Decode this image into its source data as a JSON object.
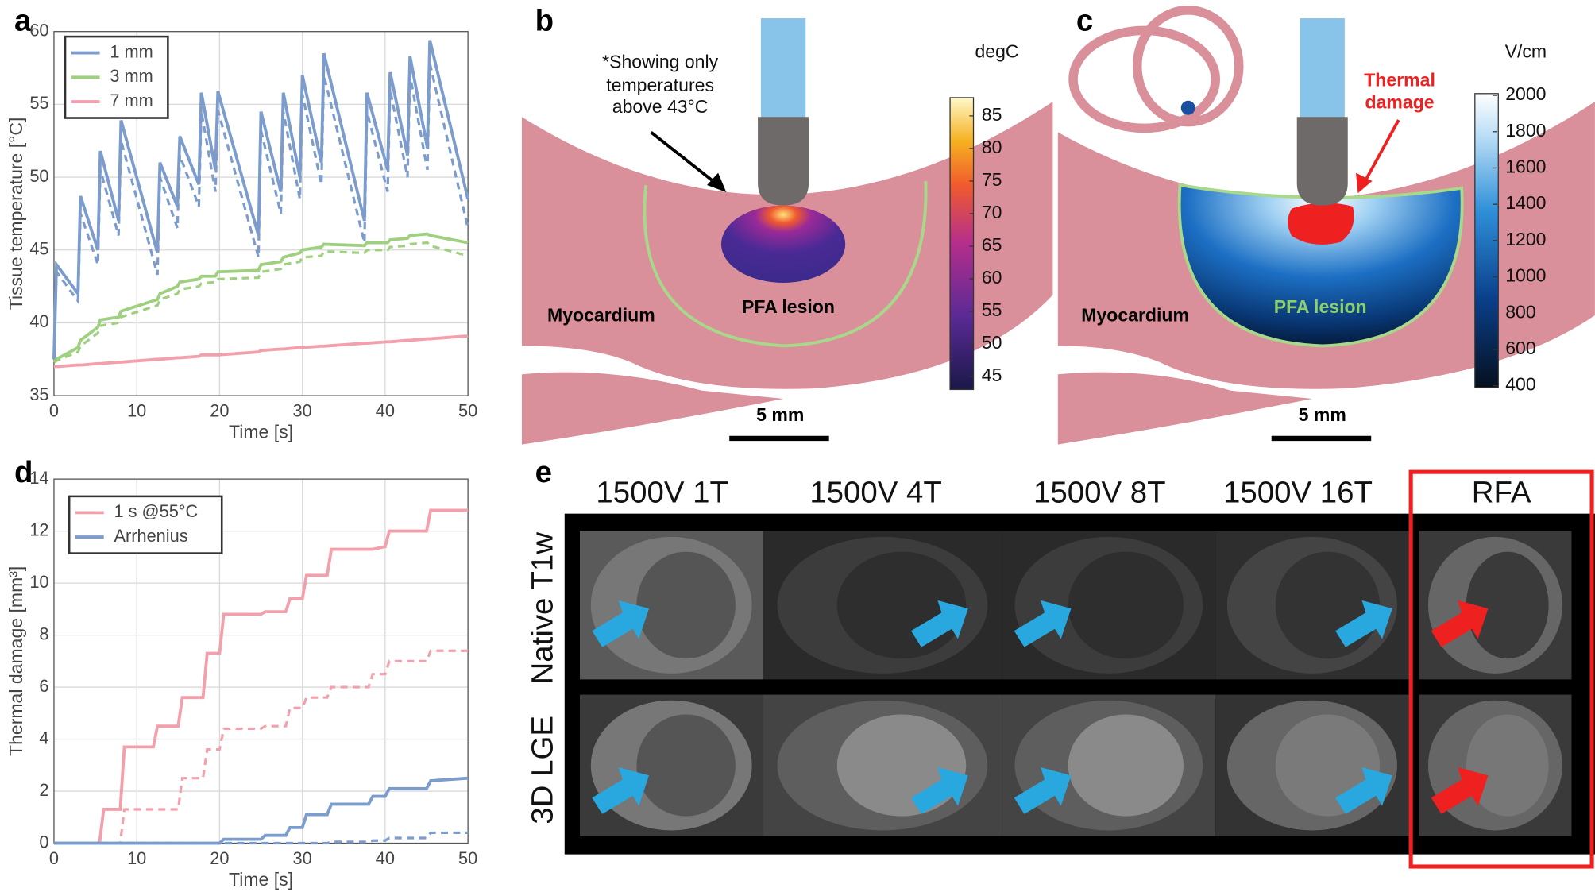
{
  "chart_data": [
    {
      "type": "line",
      "panel_label": "a",
      "x_label": "Time [s]",
      "y_label": "Tissue temperature [°C]",
      "x": [
        0,
        0.3,
        2.9,
        3.2,
        5.3,
        5.6,
        7.8,
        8.1,
        12.5,
        12.8,
        14.9,
        15.2,
        17.5,
        17.8,
        19.5,
        19.8,
        24.7,
        25.0,
        27.4,
        27.7,
        29.7,
        30.0,
        32.3,
        32.6,
        37.5,
        37.8,
        40.3,
        40.6,
        42.7,
        43.0,
        45.1,
        45.4,
        50
      ],
      "series": [
        {
          "name": "1 mm",
          "color": "#7b9ccc",
          "values": [
            37.5,
            44,
            42,
            48.7,
            45,
            51.8,
            47,
            53.9,
            44.8,
            51,
            48,
            52.8,
            49.5,
            55.8,
            50.5,
            55.9,
            46,
            54.5,
            49,
            55.8,
            50,
            57,
            51,
            58.5,
            47,
            55.8,
            50.5,
            57.2,
            51.5,
            58.3,
            52,
            59.4,
            48.5
          ],
          "dashed_values": [
            37.5,
            43.5,
            41.5,
            47.5,
            44,
            50.5,
            46,
            52.5,
            43.3,
            50,
            46.5,
            51.5,
            48,
            54.5,
            49,
            54.6,
            44.5,
            53.2,
            47.5,
            54.5,
            48.5,
            55.7,
            49.5,
            57,
            45.5,
            54.5,
            49,
            56,
            50,
            57,
            50.5,
            57.8,
            46.5
          ]
        },
        {
          "name": "3 mm",
          "color": "#9ed07f",
          "values": [
            37.3,
            37.5,
            38.3,
            38.8,
            39.7,
            40.2,
            40.4,
            40.8,
            41.6,
            42,
            42.5,
            42.8,
            43,
            43.2,
            43.2,
            43.5,
            43.6,
            44,
            44.2,
            44.5,
            44.8,
            45,
            45.2,
            45.4,
            45.3,
            45.5,
            45.5,
            45.7,
            45.8,
            46,
            46.1,
            46,
            45.5
          ],
          "dashed_values": [
            37.3,
            37.4,
            38,
            38.4,
            39.3,
            39.8,
            40,
            40.4,
            41.2,
            41.6,
            42,
            42.3,
            42.5,
            42.7,
            42.8,
            43,
            43.1,
            43.5,
            43.7,
            44,
            44.2,
            44.5,
            44.6,
            44.9,
            44.8,
            45,
            45,
            45.2,
            45.3,
            45.4,
            45.5,
            45.3,
            44.6
          ]
        },
        {
          "name": "7 mm",
          "color": "#f2a0ac",
          "values": [
            37,
            37,
            37.1,
            37.1,
            37.2,
            37.2,
            37.3,
            37.3,
            37.5,
            37.5,
            37.6,
            37.6,
            37.7,
            37.8,
            37.8,
            37.8,
            38,
            38.1,
            38.2,
            38.2,
            38.3,
            38.3,
            38.4,
            38.4,
            38.6,
            38.6,
            38.7,
            38.7,
            38.8,
            38.8,
            38.9,
            38.9,
            39.1
          ]
        }
      ],
      "xlim": [
        0,
        50
      ],
      "ylim": [
        35,
        60
      ],
      "xticks": [
        0,
        10,
        20,
        30,
        40,
        50
      ],
      "yticks": [
        35,
        40,
        45,
        50,
        55,
        60
      ],
      "grid": true,
      "legend": "upper left"
    },
    {
      "type": "line",
      "panel_label": "d",
      "x_label": "Time [s]",
      "y_label": "Thermal damage [mm³]",
      "x": [
        0,
        5.5,
        6,
        8,
        8.5,
        12,
        12.5,
        15,
        15.5,
        18,
        18.5,
        20,
        20.5,
        25,
        25.5,
        28,
        28.5,
        30,
        30.5,
        33,
        33.5,
        38,
        38.5,
        40,
        40.5,
        45,
        45.5,
        50
      ],
      "series": [
        {
          "name": "1 s @55°C",
          "color": "#f2a0ac",
          "values": [
            0,
            0,
            1.3,
            1.3,
            3.7,
            3.7,
            4.5,
            4.5,
            5.6,
            5.6,
            7.3,
            7.3,
            8.8,
            8.8,
            8.9,
            8.9,
            9.4,
            9.4,
            10.3,
            10.3,
            11.3,
            11.3,
            11.3,
            11.4,
            12,
            12,
            12.8,
            12.8
          ],
          "dashed_values": [
            0,
            0,
            0,
            0,
            1.3,
            1.3,
            1.3,
            1.3,
            2.5,
            2.5,
            3.6,
            3.6,
            4.4,
            4.4,
            4.5,
            4.5,
            5.2,
            5.2,
            5.6,
            5.6,
            6,
            6,
            6.5,
            6.5,
            7,
            7,
            7.4,
            7.4
          ]
        },
        {
          "name": "Arrhenius",
          "color": "#7b9ccc",
          "values": [
            0,
            0,
            0,
            0,
            0,
            0,
            0,
            0,
            0,
            0,
            0,
            0,
            0.15,
            0.15,
            0.3,
            0.3,
            0.6,
            0.6,
            1.1,
            1.1,
            1.5,
            1.5,
            1.8,
            1.8,
            2.1,
            2.1,
            2.4,
            2.5
          ],
          "dashed_values": [
            0,
            0,
            0,
            0,
            0,
            0,
            0,
            0,
            0,
            0,
            0,
            0,
            0,
            0,
            0,
            0,
            0,
            0,
            0,
            0,
            0.05,
            0.05,
            0.1,
            0.1,
            0.2,
            0.2,
            0.4,
            0.4
          ]
        }
      ],
      "xlim": [
        0,
        50
      ],
      "ylim": [
        0,
        14
      ],
      "xticks": [
        0,
        10,
        20,
        30,
        40,
        50
      ],
      "yticks": [
        0,
        2,
        4,
        6,
        8,
        10,
        12,
        14
      ],
      "grid": true,
      "legend": "upper left"
    }
  ],
  "panels": {
    "b": {
      "panel_label": "b",
      "note": [
        "*Showing only",
        "temperatures",
        "above 43°C"
      ],
      "tissue_label": "Myocardium",
      "lesion_label": "PFA lesion",
      "scale_bar": "5 mm",
      "colorbar": {
        "label": "degC",
        "lim": [
          43,
          87.8
        ],
        "ticks": [
          45,
          50,
          55,
          60,
          65,
          70,
          75,
          80,
          85
        ]
      }
    },
    "c": {
      "panel_label": "c",
      "damage_label": [
        "Thermal",
        "damage"
      ],
      "tissue_label": "Myocardium",
      "lesion_label": "PFA lesion",
      "scale_bar": "5 mm",
      "colorbar": {
        "label": "V/cm",
        "lim": [
          390,
          2010
        ],
        "ticks": [
          400,
          600,
          800,
          1000,
          1200,
          1400,
          1600,
          1800,
          2000
        ]
      }
    },
    "e": {
      "panel_label": "e",
      "columns": [
        "1500V 1T",
        "1500V 4T",
        "1500V 8T",
        "1500V 16T",
        "RFA"
      ],
      "rows": [
        "Native T1w",
        "3D LGE"
      ]
    }
  }
}
